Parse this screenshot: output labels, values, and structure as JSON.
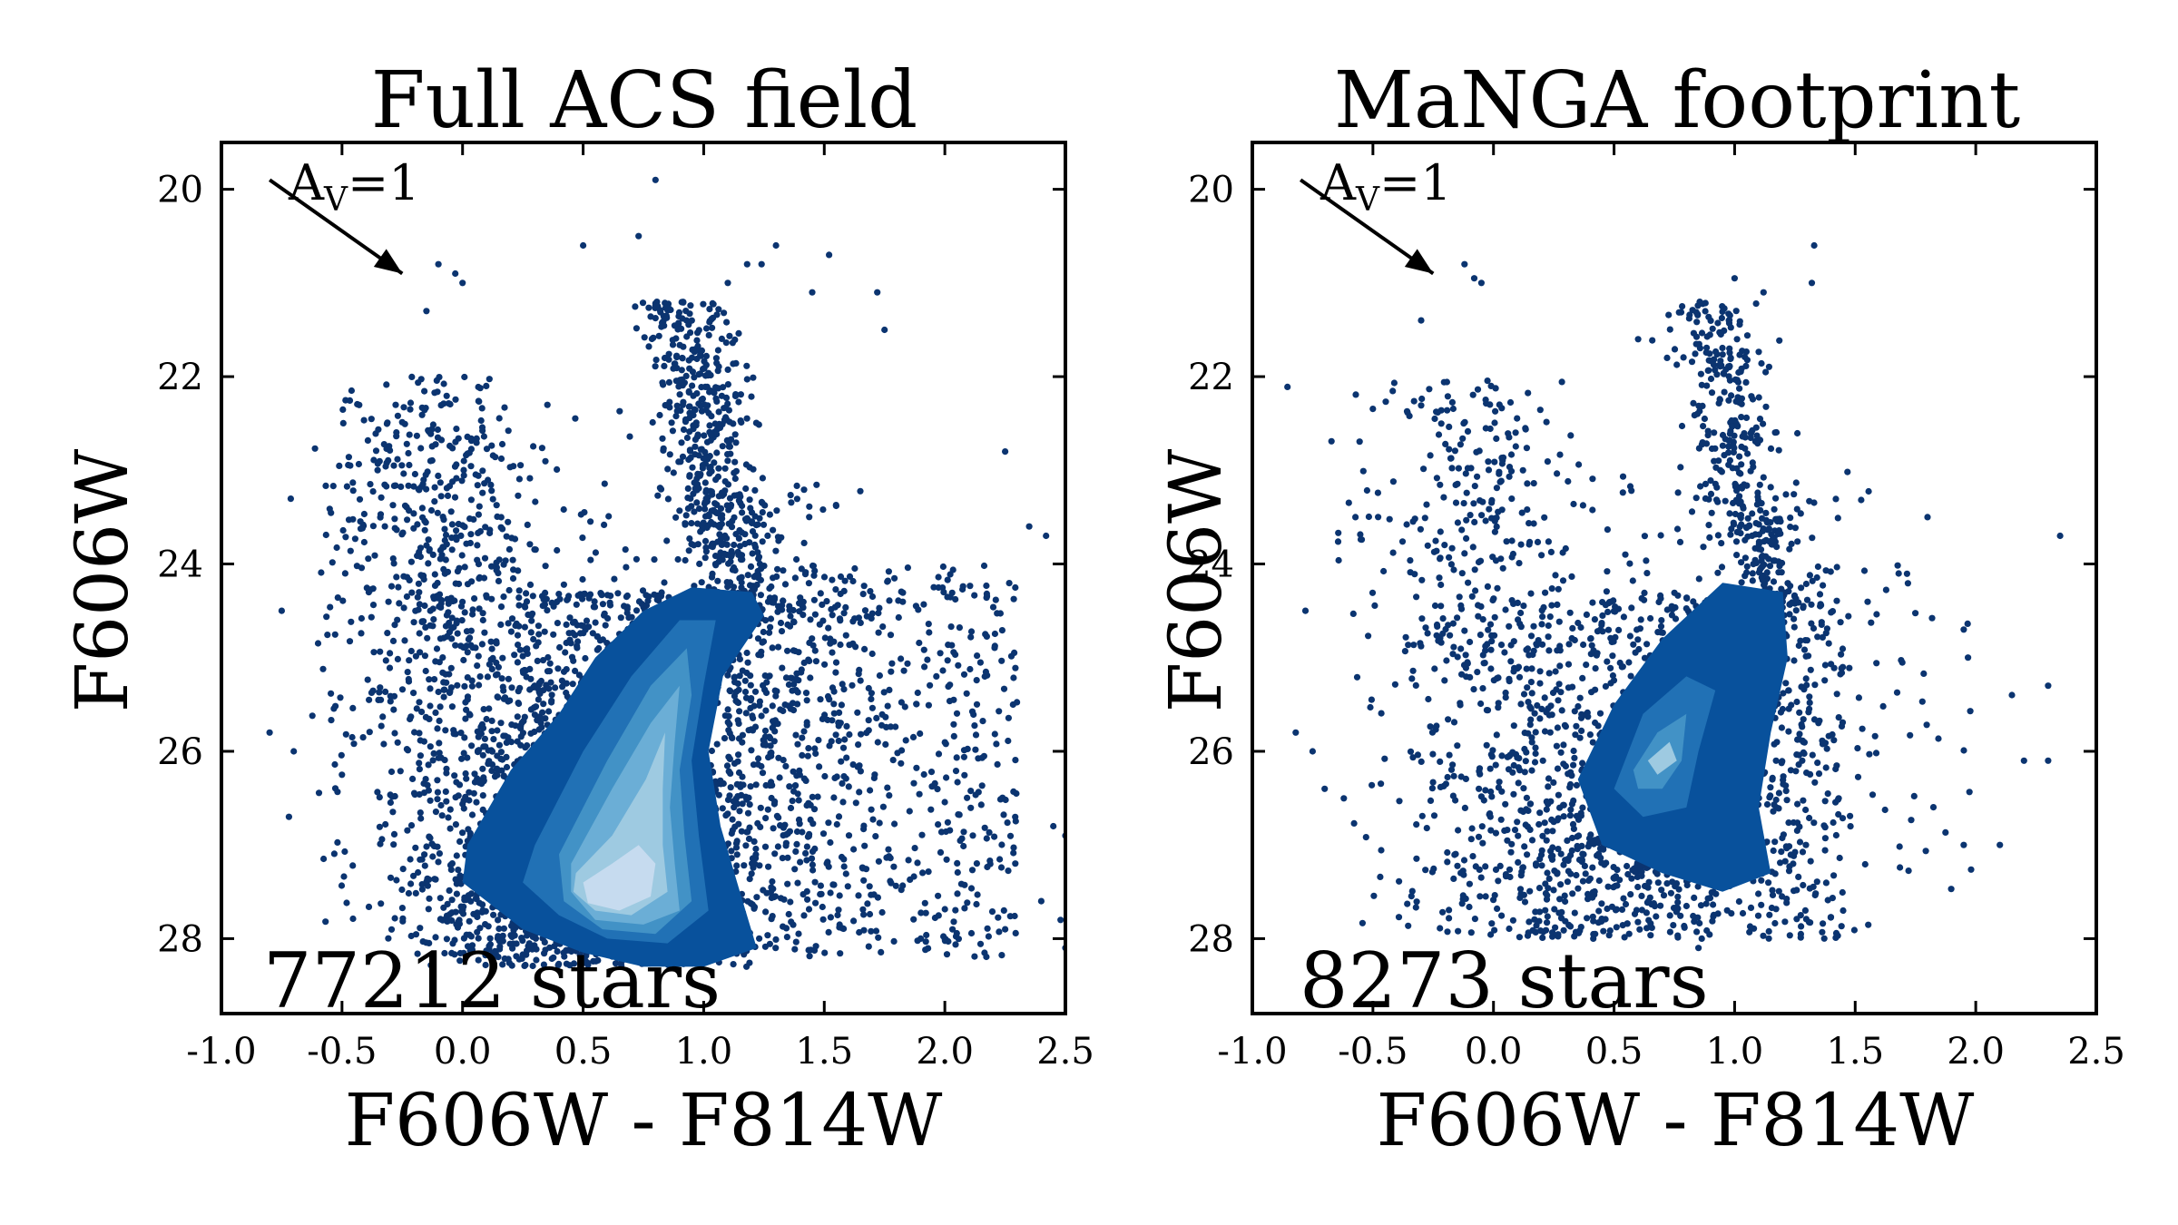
{
  "chart_data": [
    {
      "type": "scatter",
      "title": "Full ACS field",
      "xlabel": "F606W - F814W",
      "ylabel": "F606W",
      "xlim": [
        -1.0,
        2.5
      ],
      "ylim": [
        28.8,
        19.5
      ],
      "y_axis_inverted": true,
      "xticks": [
        "-1.0",
        "-0.5",
        "0.0",
        "0.5",
        "1.0",
        "1.5",
        "2.0",
        "2.5"
      ],
      "yticks": [
        "20",
        "22",
        "24",
        "26",
        "28"
      ],
      "annotation": "77212 stars",
      "extinction_label": "A",
      "extinction_subscript": "V",
      "extinction_value": "=1",
      "extinction_arrow": {
        "from": [
          -0.8,
          19.9
        ],
        "to": [
          -0.25,
          20.9
        ]
      },
      "point_color": "#0b3470",
      "contour_colors": [
        "#08519c",
        "#2171b5",
        "#4292c6",
        "#6baed6",
        "#9ecae1",
        "#c6dbef",
        "#e6eff9"
      ],
      "series": [
        {
          "name": "",
          "description_points": "star photometry",
          "sampled_points": [
            {
              "x": 0.8,
              "y": 19.9
            },
            {
              "x": 0.73,
              "y": 20.5
            },
            {
              "x": 0.5,
              "y": 20.6
            },
            {
              "x": 1.3,
              "y": 20.6
            },
            {
              "x": 1.52,
              "y": 20.7
            },
            {
              "x": 1.24,
              "y": 20.8
            },
            {
              "x": 1.18,
              "y": 20.8
            },
            {
              "x": -0.1,
              "y": 20.8
            },
            {
              "x": -0.03,
              "y": 20.9
            },
            {
              "x": 0.0,
              "y": 21.0
            },
            {
              "x": 1.45,
              "y": 21.1
            },
            {
              "x": 1.72,
              "y": 21.1
            },
            {
              "x": 1.1,
              "y": 21.0
            },
            {
              "x": -0.15,
              "y": 21.3
            },
            {
              "x": 1.75,
              "y": 21.5
            },
            {
              "x": 2.25,
              "y": 22.8
            },
            {
              "x": 2.35,
              "y": 23.6
            },
            {
              "x": 2.42,
              "y": 23.7
            },
            {
              "x": -0.75,
              "y": 24.5
            },
            {
              "x": -0.8,
              "y": 25.8
            },
            {
              "x": -0.7,
              "y": 26.0
            },
            {
              "x": -0.72,
              "y": 26.7
            },
            {
              "x": 2.45,
              "y": 26.8
            },
            {
              "x": 2.5,
              "y": 26.9
            },
            {
              "x": 2.4,
              "y": 27.6
            },
            {
              "x": 2.48,
              "y": 27.8
            },
            {
              "x": 2.5,
              "y": 28.1
            },
            {
              "x": 2.25,
              "y": 27.9
            },
            {
              "x": 2.0,
              "y": 28.0
            },
            {
              "x": 1.9,
              "y": 28.0
            }
          ]
        }
      ],
      "density_contours": [
        {
          "level": 1,
          "points": [
            [
              0.02,
              27.0
            ],
            [
              0.2,
              26.2
            ],
            [
              0.4,
              25.6
            ],
            [
              0.55,
              25.0
            ],
            [
              0.75,
              24.5
            ],
            [
              0.95,
              24.25
            ],
            [
              1.2,
              24.3
            ],
            [
              1.25,
              24.55
            ],
            [
              1.08,
              25.2
            ],
            [
              1.02,
              26.0
            ],
            [
              1.07,
              26.8
            ],
            [
              1.15,
              27.5
            ],
            [
              1.22,
              28.1
            ],
            [
              1.0,
              28.3
            ],
            [
              0.75,
              28.3
            ],
            [
              0.5,
              28.15
            ],
            [
              0.25,
              27.9
            ],
            [
              0.0,
              27.4
            ]
          ]
        },
        {
          "level": 2,
          "points": [
            [
              0.3,
              27.0
            ],
            [
              0.5,
              26.0
            ],
            [
              0.7,
              25.2
            ],
            [
              0.9,
              24.6
            ],
            [
              1.05,
              24.6
            ],
            [
              1.0,
              25.3
            ],
            [
              0.95,
              26.1
            ],
            [
              0.98,
              26.9
            ],
            [
              1.02,
              27.7
            ],
            [
              0.85,
              28.05
            ],
            [
              0.6,
              28.0
            ],
            [
              0.4,
              27.75
            ],
            [
              0.25,
              27.4
            ]
          ]
        },
        {
          "level": 3,
          "points": [
            [
              0.4,
              27.1
            ],
            [
              0.6,
              26.1
            ],
            [
              0.78,
              25.3
            ],
            [
              0.93,
              24.9
            ],
            [
              0.95,
              25.4
            ],
            [
              0.9,
              26.2
            ],
            [
              0.92,
              26.9
            ],
            [
              0.95,
              27.6
            ],
            [
              0.8,
              27.95
            ],
            [
              0.58,
              27.9
            ],
            [
              0.42,
              27.6
            ]
          ]
        },
        {
          "level": 4,
          "points": [
            [
              0.45,
              27.2
            ],
            [
              0.62,
              26.4
            ],
            [
              0.78,
              25.7
            ],
            [
              0.9,
              25.3
            ],
            [
              0.88,
              25.9
            ],
            [
              0.86,
              26.6
            ],
            [
              0.88,
              27.2
            ],
            [
              0.9,
              27.7
            ],
            [
              0.75,
              27.85
            ],
            [
              0.55,
              27.8
            ],
            [
              0.45,
              27.5
            ]
          ]
        },
        {
          "level": 5,
          "points": [
            [
              0.47,
              27.3
            ],
            [
              0.62,
              26.9
            ],
            [
              0.76,
              26.3
            ],
            [
              0.84,
              25.8
            ],
            [
              0.83,
              26.4
            ],
            [
              0.83,
              27.0
            ],
            [
              0.85,
              27.5
            ],
            [
              0.7,
              27.75
            ],
            [
              0.55,
              27.7
            ],
            [
              0.46,
              27.5
            ]
          ]
        },
        {
          "level": 6,
          "points": [
            [
              0.5,
              27.4
            ],
            [
              0.62,
              27.2
            ],
            [
              0.73,
              27.0
            ],
            [
              0.8,
              27.2
            ],
            [
              0.78,
              27.55
            ],
            [
              0.65,
              27.7
            ],
            [
              0.52,
              27.62
            ]
          ]
        }
      ]
    },
    {
      "type": "scatter",
      "title": "MaNGA footprint",
      "xlabel": "F606W - F814W",
      "ylabel": "F606W",
      "xlim": [
        -1.0,
        2.5
      ],
      "ylim": [
        28.8,
        19.5
      ],
      "y_axis_inverted": true,
      "xticks": [
        "-1.0",
        "-0.5",
        "0.0",
        "0.5",
        "1.0",
        "1.5",
        "2.0",
        "2.5"
      ],
      "yticks": [
        "20",
        "22",
        "24",
        "26",
        "28"
      ],
      "annotation": "8273 stars",
      "extinction_label": "A",
      "extinction_subscript": "V",
      "extinction_value": "=1",
      "extinction_arrow": {
        "from": [
          -0.8,
          19.9
        ],
        "to": [
          -0.25,
          20.9
        ]
      },
      "point_color": "#0b3470",
      "contour_colors": [
        "#08519c",
        "#2171b5",
        "#4292c6",
        "#9ecae1",
        "#e6eff9"
      ],
      "series": [
        {
          "name": "",
          "description_points": "star photometry",
          "sampled_points": [
            {
              "x": 1.33,
              "y": 20.6
            },
            {
              "x": -0.12,
              "y": 20.8
            },
            {
              "x": -0.08,
              "y": 20.95
            },
            {
              "x": -0.05,
              "y": 21.0
            },
            {
              "x": 1.0,
              "y": 20.95
            },
            {
              "x": 1.12,
              "y": 21.1
            },
            {
              "x": 1.32,
              "y": 21.0
            },
            {
              "x": -0.3,
              "y": 21.4
            },
            {
              "x": 0.6,
              "y": 21.6
            },
            {
              "x": 0.72,
              "y": 21.8
            },
            {
              "x": 1.8,
              "y": 23.5
            },
            {
              "x": 2.35,
              "y": 23.7
            },
            {
              "x": -0.78,
              "y": 24.5
            },
            {
              "x": 1.95,
              "y": 24.7
            },
            {
              "x": 2.15,
              "y": 25.4
            },
            {
              "x": 2.3,
              "y": 25.3
            },
            {
              "x": -0.82,
              "y": 25.8
            },
            {
              "x": -0.75,
              "y": 26.0
            },
            {
              "x": -0.7,
              "y": 26.4
            },
            {
              "x": 2.2,
              "y": 26.1
            },
            {
              "x": 2.3,
              "y": 26.1
            },
            {
              "x": 1.95,
              "y": 27.0
            },
            {
              "x": 2.1,
              "y": 27.0
            },
            {
              "x": 1.45,
              "y": 27.7
            },
            {
              "x": 0.85,
              "y": 28.1
            }
          ]
        }
      ],
      "density_contours": [
        {
          "level": 1,
          "points": [
            [
              0.35,
              26.3
            ],
            [
              0.5,
              25.5
            ],
            [
              0.7,
              24.8
            ],
            [
              0.95,
              24.2
            ],
            [
              1.2,
              24.3
            ],
            [
              1.22,
              25.0
            ],
            [
              1.15,
              25.8
            ],
            [
              1.1,
              26.6
            ],
            [
              1.15,
              27.3
            ],
            [
              0.95,
              27.5
            ],
            [
              0.7,
              27.3
            ],
            [
              0.45,
              27.0
            ]
          ]
        },
        {
          "level": 2,
          "points": [
            [
              0.5,
              26.4
            ],
            [
              0.62,
              25.6
            ],
            [
              0.8,
              25.2
            ],
            [
              0.92,
              25.35
            ],
            [
              0.85,
              26.0
            ],
            [
              0.8,
              26.6
            ],
            [
              0.62,
              26.7
            ]
          ]
        },
        {
          "level": 3,
          "points": [
            [
              0.58,
              26.2
            ],
            [
              0.68,
              25.8
            ],
            [
              0.8,
              25.6
            ],
            [
              0.78,
              26.1
            ],
            [
              0.7,
              26.4
            ],
            [
              0.6,
              26.4
            ]
          ]
        },
        {
          "level": 4,
          "points": [
            [
              0.64,
              26.1
            ],
            [
              0.73,
              25.9
            ],
            [
              0.76,
              26.1
            ],
            [
              0.68,
              26.25
            ]
          ]
        }
      ]
    }
  ]
}
